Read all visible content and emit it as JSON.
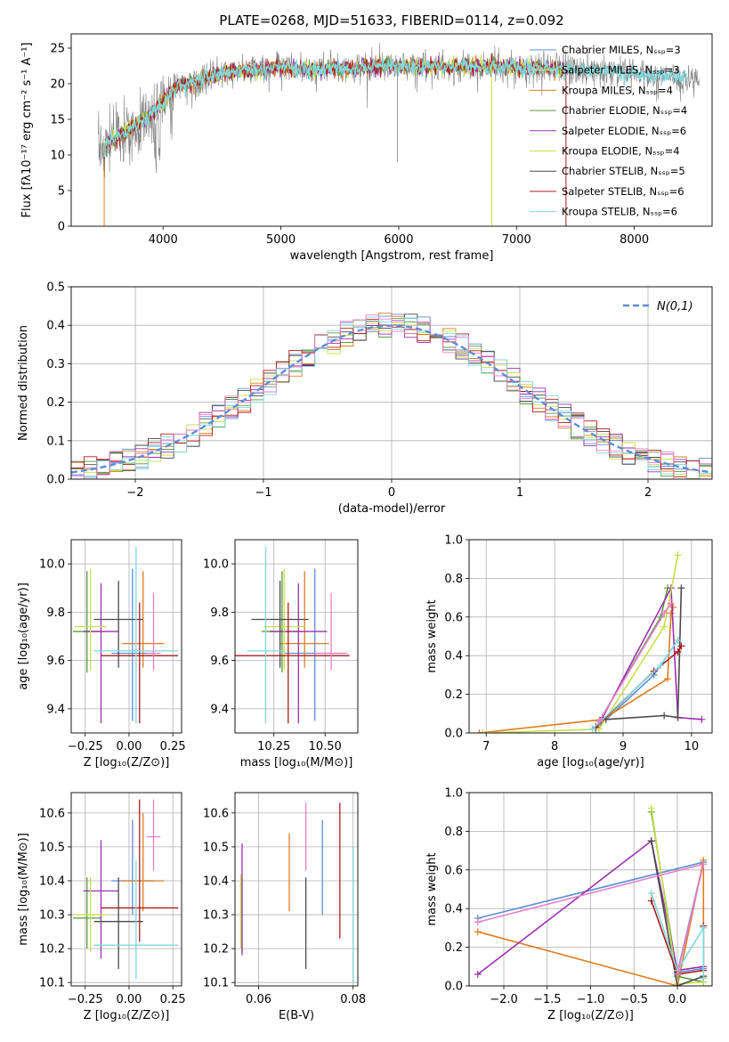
{
  "figure_title": "PLATE=0268, MJD=51633, FIBERID=0114, z=0.092",
  "colors": {
    "Chabrier MILES": "#5b8fd6",
    "Salpeter MILES": "#e0dc6a",
    "Kroupa MILES": "#e07b20",
    "Chabrier ELODIE": "#5a9a3a",
    "Salpeter ELODIE": "#9b30b0",
    "Kroupa ELODIE": "#c8e04a",
    "Chabrier STELIB": "#4a4a4a",
    "Salpeter STELIB": "#b01a1a",
    "Kroupa STELIB": "#7fd8dc",
    "extra_pink": "#e87fc8",
    "data_gray": "#808080"
  },
  "chart_data": [
    {
      "id": "spectrum",
      "type": "line",
      "xlabel": "wavelength [Angstrom, rest frame]",
      "ylabel": "Flux [fλ10⁻¹⁷ erg cm⁻² s⁻¹ A⁻¹]",
      "xlim": [
        3220,
        8660
      ],
      "ylim": [
        0,
        27
      ],
      "xticks": [
        4000,
        5000,
        6000,
        7000,
        8000
      ],
      "yticks": [
        0,
        5,
        10,
        15,
        20,
        25
      ],
      "grid": false,
      "legend_position": "right",
      "legend": [
        {
          "name": "Chabrier MILES",
          "label": "Chabrier MILES, Nₛₛₚ=3"
        },
        {
          "name": "Salpeter MILES",
          "label": "Salpeter MILES, Nₛₛₚ=3"
        },
        {
          "name": "Kroupa MILES",
          "label": "Kroupa MILES, Nₛₛₚ=4"
        },
        {
          "name": "Chabrier ELODIE",
          "label": "Chabrier ELODIE, Nₛₛₚ=4"
        },
        {
          "name": "Salpeter ELODIE",
          "label": "Salpeter ELODIE, Nₛₛₚ=6"
        },
        {
          "name": "Kroupa ELODIE",
          "label": "Kroupa ELODIE, Nₛₛₚ=4"
        },
        {
          "name": "Chabrier STELIB",
          "label": "Chabrier STELIB, Nₛₛₚ=5"
        },
        {
          "name": "Salpeter STELIB",
          "label": "Salpeter STELIB, Nₛₛₚ=6"
        },
        {
          "name": "Kroupa STELIB",
          "label": "Kroupa STELIB, Nₛₛₚ=6"
        }
      ],
      "continuum": {
        "x": [
          3450,
          3600,
          3800,
          3950,
          4100,
          4300,
          4500,
          4800,
          5000,
          5300,
          5600,
          5900,
          6200,
          6500,
          6800,
          7100,
          7400,
          7700,
          8000,
          8300,
          8550
        ],
        "y": [
          10.5,
          12.5,
          14.5,
          16.5,
          19.5,
          20.5,
          21.5,
          22.0,
          22.3,
          22.0,
          22.2,
          22.6,
          22.4,
          22.5,
          22.5,
          22.3,
          22.1,
          21.8,
          21.4,
          21.0,
          20.6
        ]
      },
      "model_extent": [
        3500,
        7400
      ]
    },
    {
      "id": "residuals",
      "type": "bar",
      "xlabel": "(data-model)/error",
      "ylabel": "Normed distribution",
      "xlim": [
        -2.5,
        2.5
      ],
      "ylim": [
        0,
        0.5
      ],
      "xticks": [
        -2,
        -1,
        0,
        1,
        2
      ],
      "yticks": [
        0.0,
        0.1,
        0.2,
        0.3,
        0.4,
        0.5
      ],
      "grid": true,
      "legend_position": "top-right",
      "reference_curve": {
        "name": "N(0,1)",
        "mean": 0,
        "sigma": 1
      },
      "bin_width": 0.1
    },
    {
      "id": "age-vs-Z",
      "type": "scatter",
      "xlabel": "Z [log₁₀(Z/Z⊙)]",
      "ylabel": "age  [log₁₀(age/yr)]",
      "xlim": [
        -0.33,
        0.3
      ],
      "ylim": [
        9.3,
        10.1
      ],
      "xticks": [
        -0.25,
        0.0,
        0.25
      ],
      "yticks": [
        9.4,
        9.6,
        9.8,
        10.0
      ],
      "grid": true,
      "points": [
        {
          "series": "Chabrier MILES",
          "x": 0.02,
          "y": 9.63,
          "xerr": 0.12,
          "yerr": [
            0.28,
            0.35
          ]
        },
        {
          "series": "Kroupa MILES",
          "x": 0.08,
          "y": 9.67,
          "xerr": 0.12,
          "yerr": [
            0.1,
            0.3
          ]
        },
        {
          "series": "Chabrier ELODIE",
          "x": -0.24,
          "y": 9.72,
          "xerr": 0.08,
          "yerr": [
            0.17,
            0.25
          ]
        },
        {
          "series": "Salpeter ELODIE",
          "x": -0.16,
          "y": 9.72,
          "xerr": 0.1,
          "yerr": [
            0.38,
            0.2
          ]
        },
        {
          "series": "Kroupa ELODIE",
          "x": -0.22,
          "y": 9.74,
          "xerr": 0.09,
          "yerr": [
            0.18,
            0.24
          ]
        },
        {
          "series": "Chabrier STELIB",
          "x": -0.06,
          "y": 9.77,
          "xerr": 0.14,
          "yerr": [
            0.2,
            0.16
          ]
        },
        {
          "series": "Salpeter STELIB",
          "x": 0.06,
          "y": 9.62,
          "xerr": 0.22,
          "yerr": [
            0.28,
            0.22
          ]
        },
        {
          "series": "Kroupa STELIB",
          "x": 0.04,
          "y": 9.64,
          "xerr": 0.24,
          "yerr": [
            0.3,
            0.43
          ]
        },
        {
          "series": "extra_pink",
          "x": 0.14,
          "y": 9.63,
          "xerr": 0.04,
          "yerr": [
            0.07,
            0.25
          ]
        }
      ]
    },
    {
      "id": "age-vs-mass",
      "type": "scatter",
      "xlabel": "mass [log₁₀(M/M⊙)]",
      "ylabel": "",
      "xlim": [
        10.06,
        10.66
      ],
      "ylim": [
        9.3,
        10.1
      ],
      "xticks": [
        10.25,
        10.5
      ],
      "yticks": [
        9.4,
        9.6,
        9.8,
        10.0
      ],
      "grid": true,
      "points": [
        {
          "series": "Chabrier MILES",
          "x": 10.45,
          "y": 9.63,
          "xerr": 0.15,
          "yerr": [
            0.28,
            0.35
          ]
        },
        {
          "series": "Kroupa MILES",
          "x": 10.4,
          "y": 9.67,
          "xerr": 0.12,
          "yerr": [
            0.1,
            0.3
          ]
        },
        {
          "series": "Chabrier ELODIE",
          "x": 10.29,
          "y": 9.72,
          "xerr": 0.1,
          "yerr": [
            0.17,
            0.25
          ]
        },
        {
          "series": "Salpeter ELODIE",
          "x": 10.37,
          "y": 9.72,
          "xerr": 0.14,
          "yerr": [
            0.38,
            0.2
          ]
        },
        {
          "series": "Kroupa ELODIE",
          "x": 10.3,
          "y": 9.74,
          "xerr": 0.1,
          "yerr": [
            0.18,
            0.24
          ]
        },
        {
          "series": "Chabrier STELIB",
          "x": 10.28,
          "y": 9.77,
          "xerr": 0.14,
          "yerr": [
            0.2,
            0.16
          ]
        },
        {
          "series": "Salpeter STELIB",
          "x": 10.32,
          "y": 9.62,
          "xerr": 0.3,
          "yerr": [
            0.28,
            0.22
          ]
        },
        {
          "series": "Kroupa STELIB",
          "x": 10.21,
          "y": 9.64,
          "xerr": 0.09,
          "yerr": [
            0.3,
            0.43
          ]
        },
        {
          "series": "extra_pink",
          "x": 10.53,
          "y": 9.63,
          "xerr": 0.08,
          "yerr": [
            0.07,
            0.25
          ]
        }
      ]
    },
    {
      "id": "weight-vs-age",
      "type": "line",
      "xlabel": "age  [log₁₀(age/yr)]",
      "ylabel": "mass weight",
      "xlim": [
        6.75,
        10.3
      ],
      "ylim": [
        0,
        1
      ],
      "xticks": [
        7,
        8,
        9,
        10
      ],
      "yticks": [
        0.0,
        0.2,
        0.4,
        0.6,
        0.8,
        1.0
      ],
      "grid": true,
      "series": [
        {
          "name": "Chabrier MILES",
          "x": [
            8.6,
            9.45,
            9.8
          ],
          "y": [
            0.02,
            0.3,
            0.48
          ]
        },
        {
          "name": "Kroupa MILES",
          "x": [
            6.9,
            8.7,
            9.65,
            9.7,
            9.73
          ],
          "y": [
            0.0,
            0.07,
            0.28,
            0.62,
            0.65
          ]
        },
        {
          "name": "Chabrier ELODIE",
          "x": [
            8.6,
            9.55,
            9.65
          ],
          "y": [
            0.03,
            0.6,
            0.75
          ]
        },
        {
          "name": "Salpeter ELODIE",
          "x": [
            8.7,
            9.7,
            9.8,
            10.15
          ],
          "y": [
            0.08,
            0.75,
            0.08,
            0.07
          ]
        },
        {
          "name": "Kroupa ELODIE",
          "x": [
            6.95,
            8.65,
            9.6,
            9.8
          ],
          "y": [
            0.0,
            0.02,
            0.55,
            0.92
          ]
        },
        {
          "name": "Chabrier STELIB",
          "x": [
            8.75,
            9.6,
            9.8,
            9.85
          ],
          "y": [
            0.07,
            0.09,
            0.08,
            0.75
          ]
        },
        {
          "name": "Salpeter STELIB",
          "x": [
            8.6,
            9.45,
            9.8,
            9.85
          ],
          "y": [
            0.03,
            0.32,
            0.42,
            0.45
          ]
        },
        {
          "name": "Kroupa STELIB",
          "x": [
            8.55,
            9.55,
            9.8
          ],
          "y": [
            0.02,
            0.35,
            0.48
          ]
        },
        {
          "name": "extra_pink",
          "x": [
            8.65,
            9.6,
            9.7
          ],
          "y": [
            0.06,
            0.62,
            0.67
          ]
        }
      ]
    },
    {
      "id": "mass-vs-Z",
      "type": "scatter",
      "xlabel": "Z [log₁₀(Z/Z⊙)]",
      "ylabel": "mass [log₁₀(M/M⊙)]",
      "xlim": [
        -0.33,
        0.3
      ],
      "ylim": [
        10.09,
        10.66
      ],
      "xticks": [
        -0.25,
        0.0,
        0.25
      ],
      "yticks": [
        10.1,
        10.2,
        10.3,
        10.4,
        10.5,
        10.6
      ],
      "grid": true,
      "points": [
        {
          "series": "Chabrier MILES",
          "x": 0.02,
          "y": 10.4,
          "xerr": 0.12,
          "yerr": [
            0.1,
            0.18
          ]
        },
        {
          "series": "Kroupa MILES",
          "x": 0.08,
          "y": 10.4,
          "xerr": 0.12,
          "yerr": [
            0.09,
            0.2
          ]
        },
        {
          "series": "Chabrier ELODIE",
          "x": -0.24,
          "y": 10.29,
          "xerr": 0.08,
          "yerr": [
            0.09,
            0.12
          ]
        },
        {
          "series": "Salpeter ELODIE",
          "x": -0.16,
          "y": 10.37,
          "xerr": 0.1,
          "yerr": [
            0.2,
            0.15
          ]
        },
        {
          "series": "Kroupa ELODIE",
          "x": -0.22,
          "y": 10.3,
          "xerr": 0.09,
          "yerr": [
            0.11,
            0.11
          ]
        },
        {
          "series": "Chabrier STELIB",
          "x": -0.06,
          "y": 10.28,
          "xerr": 0.14,
          "yerr": [
            0.14,
            0.13
          ]
        },
        {
          "series": "Salpeter STELIB",
          "x": 0.06,
          "y": 10.32,
          "xerr": 0.22,
          "yerr": [
            0.1,
            0.32
          ]
        },
        {
          "series": "Kroupa STELIB",
          "x": 0.04,
          "y": 10.21,
          "xerr": 0.24,
          "yerr": [
            0.1,
            0.25
          ]
        },
        {
          "series": "extra_pink",
          "x": 0.14,
          "y": 10.53,
          "xerr": 0.04,
          "yerr": [
            0.1,
            0.11
          ]
        }
      ]
    },
    {
      "id": "mass-vs-EBV",
      "type": "scatter",
      "xlabel": "E(B-V)",
      "ylabel": "",
      "xlim": [
        0.055,
        0.081
      ],
      "ylim": [
        10.09,
        10.66
      ],
      "xticks": [
        0.06,
        0.08
      ],
      "yticks": [
        10.1,
        10.2,
        10.3,
        10.4,
        10.5,
        10.6
      ],
      "grid": true,
      "points": [
        {
          "series": "Chabrier MILES",
          "x": 0.0735,
          "y": 10.44,
          "yerr": [
            0.14,
            0.14
          ]
        },
        {
          "series": "Kroupa MILES",
          "x": 0.0665,
          "y": 10.42,
          "yerr": [
            0.11,
            0.12
          ]
        },
        {
          "series": "Chabrier ELODIE",
          "x": 0.0565,
          "y": 10.3,
          "yerr": [
            0.11,
            0.11
          ]
        },
        {
          "series": "Salpeter ELODIE",
          "x": 0.0565,
          "y": 10.35,
          "yerr": [
            0.17,
            0.16
          ]
        },
        {
          "series": "Kroupa ELODIE",
          "x": 0.0562,
          "y": 10.3,
          "yerr": [
            0.1,
            0.12
          ]
        },
        {
          "series": "Chabrier STELIB",
          "x": 0.07,
          "y": 10.28,
          "yerr": [
            0.14,
            0.13
          ]
        },
        {
          "series": "Salpeter STELIB",
          "x": 0.0772,
          "y": 10.43,
          "yerr": [
            0.2,
            0.2
          ]
        },
        {
          "series": "Kroupa STELIB",
          "x": 0.08,
          "y": 10.3,
          "yerr": [
            0.2,
            0.2
          ]
        },
        {
          "series": "extra_pink",
          "x": 0.07,
          "y": 10.53,
          "yerr": [
            0.1,
            0.1
          ]
        }
      ]
    },
    {
      "id": "weight-vs-Z",
      "type": "line",
      "xlabel": "Z [log₁₀(Z/Z⊙)]",
      "ylabel": "mass weight",
      "xlim": [
        -2.4,
        0.4
      ],
      "ylim": [
        0,
        1
      ],
      "xticks": [
        -2.0,
        -1.5,
        -1.0,
        -0.5,
        0.0
      ],
      "yticks": [
        0.0,
        0.2,
        0.4,
        0.6,
        0.8,
        1.0
      ],
      "grid": true,
      "series": [
        {
          "name": "Chabrier MILES",
          "x": [
            -2.3,
            0.3,
            0.0,
            0.3
          ],
          "y": [
            0.35,
            0.64,
            0.07,
            0.09
          ]
        },
        {
          "name": "Kroupa MILES",
          "x": [
            -2.3,
            0.0,
            0.3,
            0.3
          ],
          "y": [
            0.28,
            0.0,
            0.65,
            0.04
          ]
        },
        {
          "name": "Chabrier ELODIE",
          "x": [
            -0.3,
            0.0,
            0.3
          ],
          "y": [
            0.9,
            0.05,
            0.02
          ]
        },
        {
          "name": "Salpeter ELODIE",
          "x": [
            -2.3,
            -0.3,
            0.0,
            0.3
          ],
          "y": [
            0.06,
            0.75,
            0.08,
            0.1
          ]
        },
        {
          "name": "Kroupa ELODIE",
          "x": [
            -0.3,
            0.0,
            0.3
          ],
          "y": [
            0.92,
            0.01,
            0.02
          ]
        },
        {
          "name": "Chabrier STELIB",
          "x": [
            -0.3,
            0.0,
            0.3
          ],
          "y": [
            0.75,
            0.0,
            0.05
          ]
        },
        {
          "name": "Salpeter STELIB",
          "x": [
            -0.3,
            0.0,
            0.3,
            0.3
          ],
          "y": [
            0.44,
            0.06,
            0.08,
            0.31
          ]
        },
        {
          "name": "Kroupa STELIB",
          "x": [
            -0.3,
            0.0,
            0.3,
            0.3
          ],
          "y": [
            0.48,
            0.08,
            0.3,
            0.04
          ]
        },
        {
          "name": "extra_pink",
          "x": [
            -2.3,
            0.3,
            0.0
          ],
          "y": [
            0.33,
            0.63,
            0.06
          ]
        }
      ]
    }
  ]
}
